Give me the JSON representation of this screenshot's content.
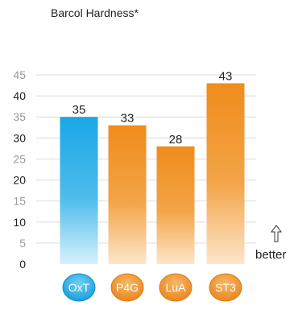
{
  "chart_data": {
    "type": "bar",
    "title": "Barcol Hardness*",
    "categories": [
      "OxT",
      "P4G",
      "LuA",
      "ST3"
    ],
    "values": [
      35,
      33,
      28,
      43
    ],
    "ylim": [
      0,
      45
    ],
    "yticks": [
      0,
      5,
      10,
      15,
      20,
      25,
      30,
      35,
      40,
      45
    ],
    "grid": "horizontal",
    "annotation": "better",
    "colors": {
      "highlight": "#1aa7e6",
      "highlight_light": "#c9ecfb",
      "others": "#f08c1c",
      "others_light": "#fde3c4",
      "tick_dark": "#222222",
      "tick_light": "#9a9a9a"
    },
    "highlight_index": 0
  }
}
